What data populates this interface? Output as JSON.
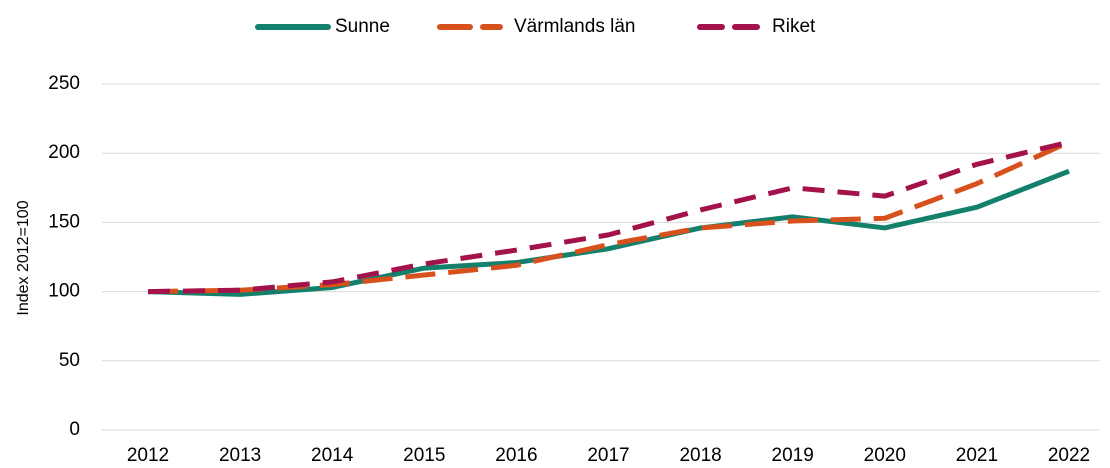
{
  "chart_data": {
    "type": "line",
    "y_label": "Index 2012=100",
    "categories": [
      "2012",
      "2013",
      "2014",
      "2015",
      "2016",
      "2017",
      "2018",
      "2019",
      "2020",
      "2021",
      "2022"
    ],
    "series": [
      {
        "name": "Sunne",
        "color": "#13806c",
        "dash": "solid",
        "values": [
          100,
          98,
          103,
          117,
          121,
          131,
          146,
          154,
          146,
          161,
          187
        ]
      },
      {
        "name": "Värmlands län",
        "color": "#d8511d",
        "dash": "long",
        "values": [
          100,
          101,
          105,
          112,
          119,
          134,
          146,
          151,
          153,
          178,
          208
        ]
      },
      {
        "name": "Riket",
        "color": "#a3124a",
        "dash": "medium",
        "values": [
          100,
          101,
          107,
          120,
          130,
          141,
          159,
          175,
          169,
          192,
          208
        ]
      }
    ],
    "ylim": [
      0,
      250
    ],
    "yticks": [
      0,
      50,
      100,
      150,
      200,
      250
    ],
    "grid": true,
    "legend": "top"
  }
}
